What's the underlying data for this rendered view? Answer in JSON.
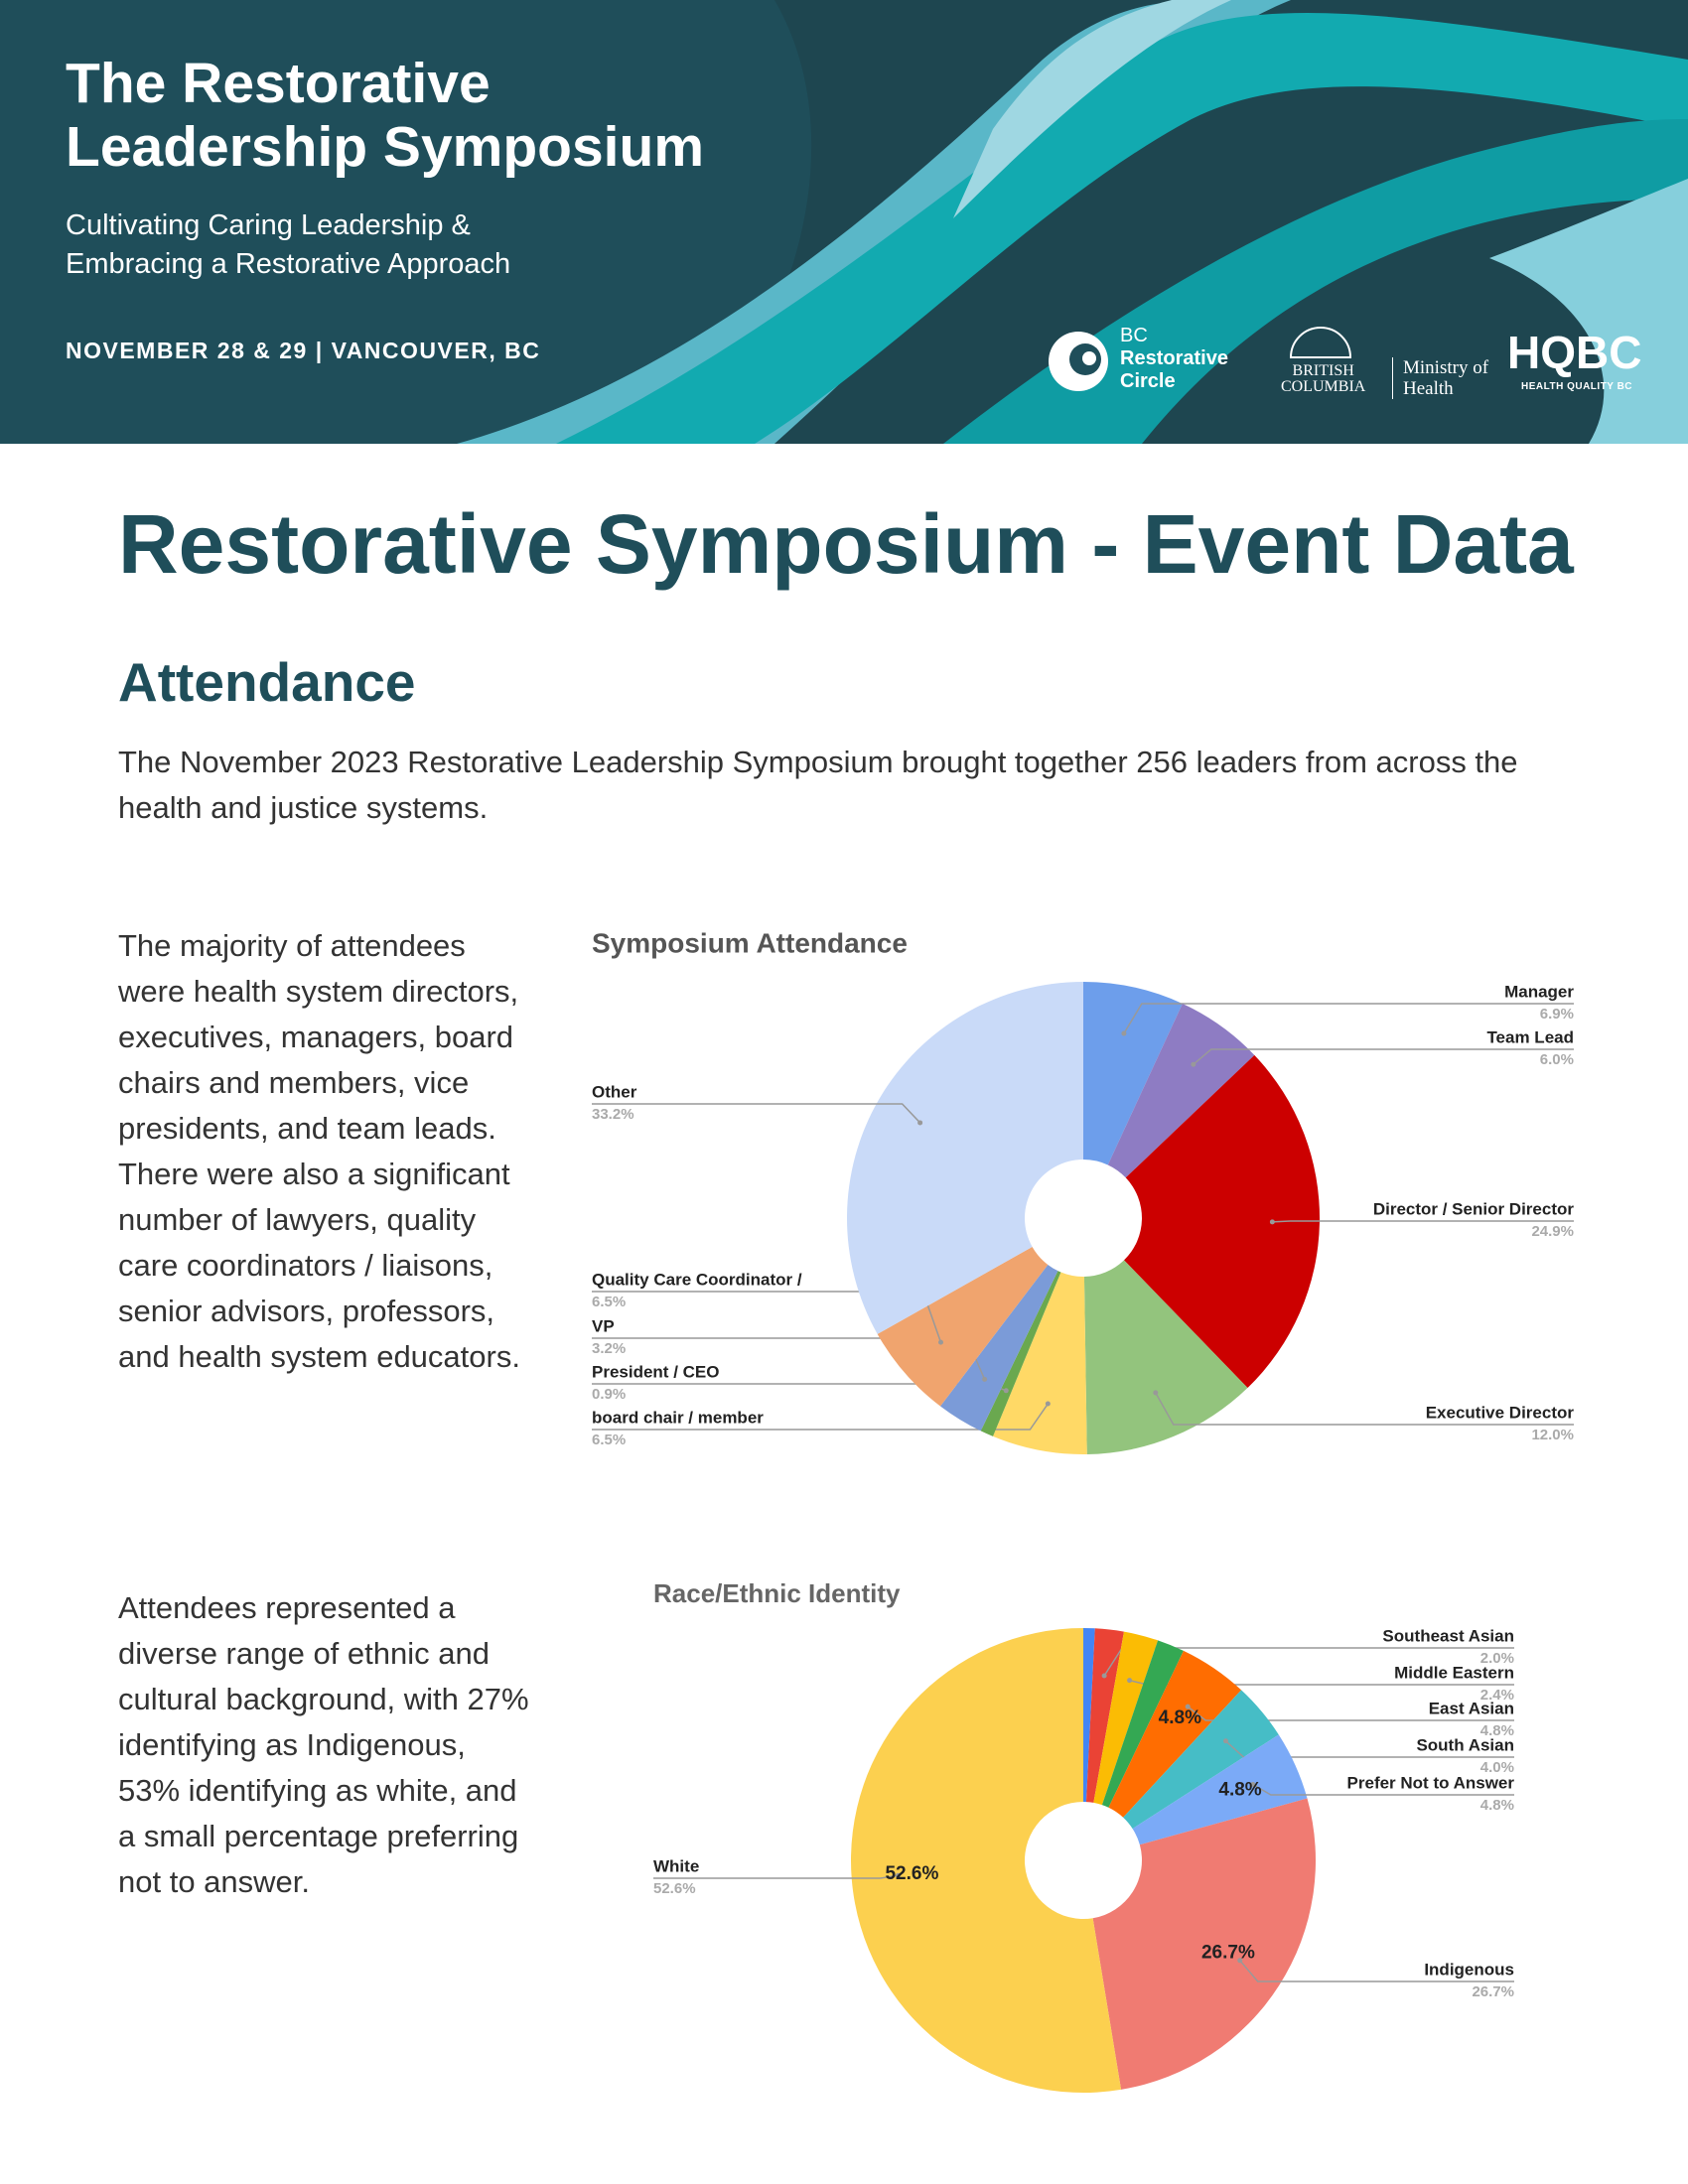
{
  "header": {
    "title": [
      "The Restorative",
      "Leadership Symposium"
    ],
    "subtitle": [
      "Cultivating Caring Leadership &",
      "Embracing a Restorative Approach"
    ],
    "date": "NOVEMBER 28 & 29 | VANCOUVER, BC",
    "logos": {
      "bc_restorative": [
        "BC",
        "Restorative",
        "Circle"
      ],
      "province": [
        "BRITISH",
        "COLUMBIA"
      ],
      "ministry": [
        "Ministry of",
        "Health"
      ],
      "hqbc": "HQBC",
      "hqbc_sub": "HEALTH QUALITY BC"
    }
  },
  "title": "Restorative Symposium - Event Data",
  "section": "Attendance",
  "intro": "The November 2023 Restorative Leadership Symposium brought together 256 leaders from across the health and justice systems.",
  "descriptions": [
    "The majority of attendees were health system directors, executives, managers, board chairs and members, vice presidents, and team leads. There were also a significant number of lawyers, quality care coordinators / liaisons, senior advisors, professors, and health system educators.",
    "Attendees represented a diverse range of ethnic and cultural background, with 27% identifying as Indigenous, 53% identifying as white, and a small percentage preferring not to answer."
  ],
  "chart_data": [
    {
      "type": "pie",
      "title": "Symposium Attendance",
      "categories": [
        "Manager",
        "Team Lead",
        "Director / Senior Director",
        "Executive Director",
        "board chair / member",
        "President / CEO",
        "VP",
        "Quality Care Coordinator /",
        "Other"
      ],
      "values": [
        6.9,
        6.0,
        24.9,
        12.0,
        6.5,
        0.9,
        3.2,
        6.5,
        33.2
      ],
      "value_labels": [
        "6.9%",
        "6.0%",
        "24.9%",
        "12.0%",
        "6.5%",
        "0.9%",
        "3.2%",
        "6.5%",
        "33.2%"
      ],
      "colors": [
        "#6d9eeb",
        "#8e7cc3",
        "#cc0000",
        "#93c47d",
        "#ffd966",
        "#6aa84f",
        "#7b9bd8",
        "#f0a46e",
        "#c9daf8"
      ],
      "donut": true
    },
    {
      "type": "pie",
      "title": "Race/Ethnic Identity",
      "categories": [
        null,
        "Southeast Asian",
        "Middle Eastern",
        null,
        "East Asian",
        "South Asian",
        "Prefer Not to Answer",
        "Indigenous",
        "White"
      ],
      "values": [
        0.8,
        2.0,
        2.4,
        1.9,
        4.8,
        4.0,
        4.8,
        26.7,
        52.6
      ],
      "value_labels": [
        null,
        "2.0%",
        "2.4%",
        null,
        "4.8%",
        "4.0%",
        "4.8%",
        "26.7%",
        "52.6%"
      ],
      "colors": [
        "#4285f4",
        "#ea4335",
        "#fbbc04",
        "#34a853",
        "#ff6d01",
        "#46bdc6",
        "#7baaf7",
        "#f07b72",
        "#fcd04f"
      ],
      "inner_labels": [
        4,
        6,
        7,
        8
      ],
      "donut": true
    }
  ]
}
